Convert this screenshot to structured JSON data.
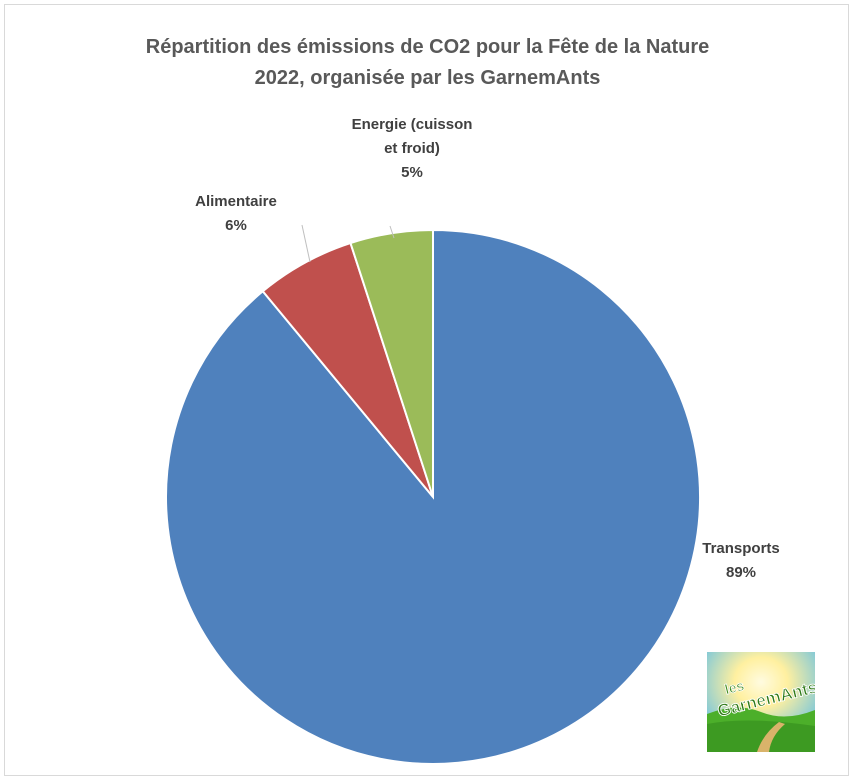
{
  "chart_data": {
    "type": "pie",
    "title_lines": [
      "Répartition des émissions de CO2 pour la Fête de la Nature",
      "2022, organisée par les GarnemAnts"
    ],
    "categories": [
      "Transports",
      "Alimentaire",
      "Energie (cuisson et froid)"
    ],
    "values": [
      89,
      6,
      5
    ],
    "value_labels": [
      "89%",
      "6%",
      "5%"
    ],
    "label_lines": [
      [
        "Transports"
      ],
      [
        "Alimentaire"
      ],
      [
        "Energie (cuisson",
        "et froid)"
      ]
    ],
    "colors": [
      "#4f81bd",
      "#c0504d",
      "#9bbb59"
    ],
    "legend": "none",
    "start": "12 o'clock",
    "direction": "clockwise"
  },
  "logo": {
    "text_lines": [
      "les",
      "GarnemAnts"
    ],
    "colors": {
      "sky": "#6fc4e8",
      "sun": "#fff4a0",
      "grass": "#4caf2a",
      "path": "#d9b36a"
    },
    "icon": "garnemants-logo"
  }
}
